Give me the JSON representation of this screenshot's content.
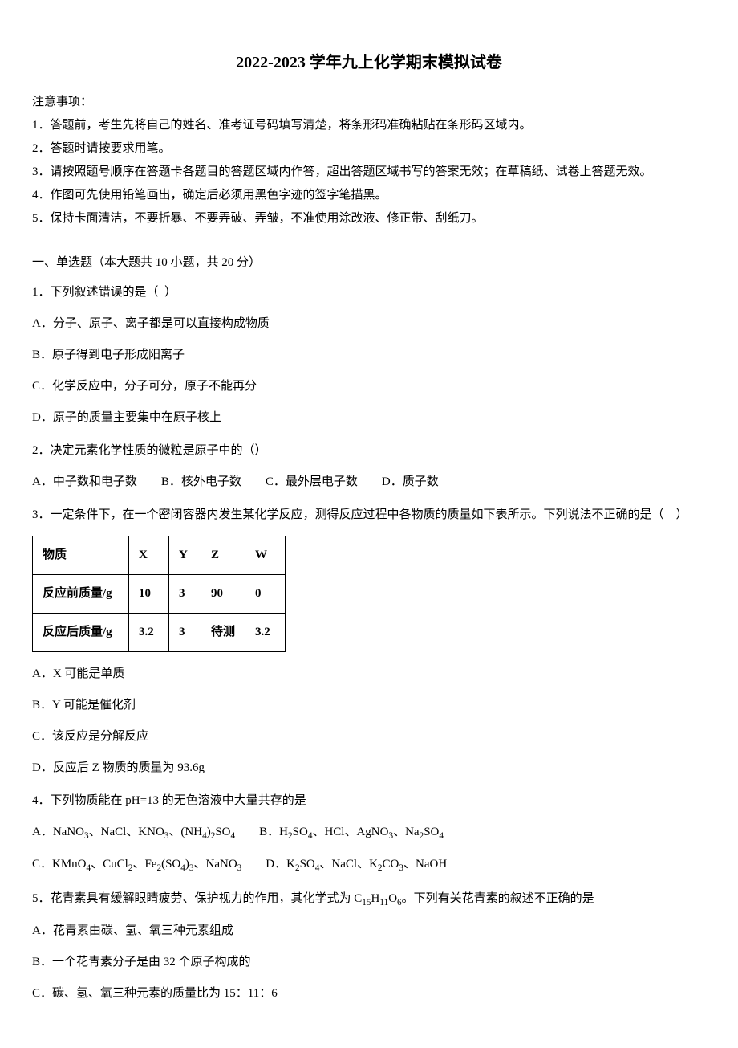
{
  "title": "2022-2023 学年九上化学期末模拟试卷",
  "notice": {
    "label": "注意事项：",
    "items": [
      "1．答题前，考生先将自己的姓名、准考证号码填写清楚，将条形码准确粘贴在条形码区域内。",
      "2．答题时请按要求用笔。",
      "3．请按照题号顺序在答题卡各题目的答题区域内作答，超出答题区域书写的答案无效；在草稿纸、试卷上答题无效。",
      "4．作图可先使用铅笔画出，确定后必须用黑色字迹的签字笔描黑。",
      "5．保持卡面清洁，不要折暴、不要弄破、弄皱，不准使用涂改液、修正带、刮纸刀。"
    ]
  },
  "section1": {
    "header": "一、单选题（本大题共 10 小题，共 20 分）"
  },
  "q1": {
    "text": "1．下列叙述错误的是（  ）",
    "a": "A．分子、原子、离子都是可以直接构成物质",
    "b": "B．原子得到电子形成阳离子",
    "c": "C．化学反应中，分子可分，原子不能再分",
    "d": "D．原子的质量主要集中在原子核上"
  },
  "q2": {
    "text": "2．决定元素化学性质的微粒是原子中的（）",
    "a": "A．中子数和电子数",
    "b": "B．核外电子数",
    "c": "C．最外层电子数",
    "d": "D．质子数"
  },
  "q3": {
    "text": "3．一定条件下，在一个密闭容器内发生某化学反应，测得反应过程中各物质的质量如下表所示。下列说法不正确的是（    ）",
    "table": {
      "headers": [
        "物质",
        "X",
        "Y",
        "Z",
        "W"
      ],
      "row1": [
        "反应前质量/g",
        "10",
        "3",
        "90",
        "0"
      ],
      "row2": [
        "反应后质量/g",
        "3.2",
        "3",
        "待测",
        "3.2"
      ]
    },
    "a": "A．X 可能是单质",
    "b": "B．Y 可能是催化剂",
    "c": "C．该反应是分解反应",
    "d": "D．反应后 Z 物质的质量为 93.6g"
  },
  "q4": {
    "text": "4．下列物质能在 pH=13 的无色溶液中大量共存的是"
  },
  "q5": {
    "a": "A．花青素由碳、氢、氧三种元素组成",
    "b": "B．一个花青素分子是由 32 个原子构成的",
    "c": "C．碳、氢、氧三种元素的质量比为 15：11：6"
  }
}
